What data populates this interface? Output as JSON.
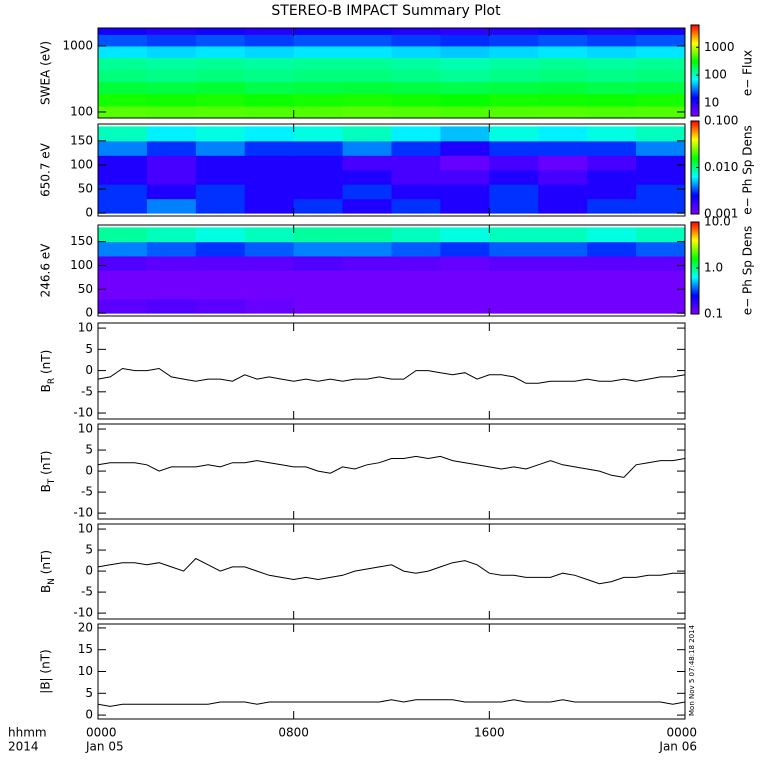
{
  "title": "STEREO-B IMPACT Summary Plot",
  "footer": {
    "format": "hhmm",
    "year": "2014"
  },
  "timestamp": "Mon Nov 5 07:48:18 2014",
  "chart_data": [
    {
      "type": "heatmap",
      "ylabel": "SWEA (eV)",
      "ylog": true,
      "ylim": [
        81,
        1870
      ],
      "yticks": [
        100,
        1000
      ],
      "xlim": [
        0,
        24
      ],
      "xticks": [
        0,
        8,
        16,
        24
      ],
      "xbins": [
        0,
        2,
        4,
        6,
        8,
        10,
        12,
        14,
        16,
        18,
        20,
        22,
        24
      ],
      "ybins": [
        81,
        123,
        190,
        290,
        440,
        670,
        1000,
        1500,
        1870
      ],
      "z": [
        [
          520,
          500,
          510,
          490,
          500,
          520,
          500,
          480,
          500,
          510,
          490,
          500
        ],
        [
          350,
          340,
          360,
          330,
          350,
          360,
          340,
          320,
          350,
          340,
          330,
          350
        ],
        [
          220,
          210,
          230,
          200,
          210,
          220,
          210,
          200,
          210,
          220,
          200,
          210
        ],
        [
          150,
          140,
          150,
          140,
          150,
          150,
          140,
          130,
          140,
          150,
          140,
          150
        ],
        [
          130,
          120,
          130,
          120,
          130,
          130,
          120,
          110,
          120,
          130,
          120,
          130
        ],
        [
          60,
          55,
          60,
          55,
          60,
          60,
          55,
          50,
          55,
          60,
          55,
          60
        ],
        [
          25,
          22,
          25,
          22,
          25,
          25,
          22,
          20,
          22,
          25,
          22,
          25
        ],
        [
          12,
          10,
          12,
          10,
          12,
          12,
          10,
          9,
          10,
          12,
          10,
          12
        ]
      ],
      "colormap": [
        "#7f00ff",
        "#0000ff",
        "#00ffff",
        "#00ff00",
        "#ffff00",
        "#ff0000"
      ],
      "colorbar": {
        "label": "e− Flux",
        "log": true,
        "lim": [
          3.4,
          6300
        ],
        "ticks": [
          10,
          100,
          1000
        ]
      }
    },
    {
      "type": "heatmap",
      "ylabel": "650.7 eV",
      "ylog": false,
      "ylim": [
        -6,
        185
      ],
      "yticks": [
        0,
        50,
        100,
        150
      ],
      "xlim": [
        0,
        24
      ],
      "xticks": [
        0,
        8,
        16,
        24
      ],
      "xbins": [
        0,
        2,
        4,
        6,
        8,
        10,
        12,
        14,
        16,
        18,
        20,
        22,
        24
      ],
      "ybins": [
        0,
        30,
        60,
        90,
        120,
        150,
        180
      ],
      "z": [
        [
          0.003,
          0.004,
          0.003,
          0.002,
          0.003,
          0.002,
          0.003,
          0.002,
          0.003,
          0.002,
          0.003,
          0.003
        ],
        [
          0.003,
          0.002,
          0.003,
          0.002,
          0.002,
          0.003,
          0.002,
          0.002,
          0.003,
          0.002,
          0.002,
          0.003
        ],
        [
          0.002,
          0.0015,
          0.002,
          0.002,
          0.002,
          0.002,
          0.0015,
          0.0015,
          0.002,
          0.0015,
          0.002,
          0.002
        ],
        [
          0.002,
          0.0015,
          0.002,
          0.002,
          0.002,
          0.0015,
          0.0015,
          0.0012,
          0.0015,
          0.0012,
          0.0015,
          0.002
        ],
        [
          0.004,
          0.003,
          0.004,
          0.003,
          0.003,
          0.004,
          0.003,
          0.002,
          0.003,
          0.003,
          0.003,
          0.004
        ],
        [
          0.008,
          0.006,
          0.007,
          0.006,
          0.007,
          0.008,
          0.006,
          0.005,
          0.007,
          0.006,
          0.007,
          0.008
        ]
      ],
      "colormap": [
        "#7f00ff",
        "#0000ff",
        "#00ffff",
        "#00ff00",
        "#ffff00",
        "#ff0000"
      ],
      "colorbar": {
        "label": "e− Ph Sp Dens",
        "log": true,
        "lim": [
          0.001,
          0.1
        ],
        "ticks": [
          0.001,
          {
            "value": 0.01,
            "label": "0.010"
          },
          {
            "value": 0.1,
            "label": "0.100"
          }
        ]
      }
    },
    {
      "type": "heatmap",
      "ylabel": "246.6 eV",
      "ylog": false,
      "ylim": [
        -6,
        185
      ],
      "yticks": [
        0,
        50,
        100,
        150
      ],
      "xlim": [
        0,
        24
      ],
      "xticks": [
        0,
        8,
        16,
        24
      ],
      "xbins": [
        0,
        2,
        4,
        6,
        8,
        10,
        12,
        14,
        16,
        18,
        20,
        22,
        24
      ],
      "ybins": [
        0,
        30,
        60,
        90,
        120,
        150,
        180
      ],
      "z": [
        [
          0.13,
          0.14,
          0.13,
          0.12,
          0.11,
          0.11,
          0.11,
          0.11,
          0.11,
          0.11,
          0.11,
          0.11
        ],
        [
          0.11,
          0.11,
          0.11,
          0.11,
          0.11,
          0.11,
          0.11,
          0.11,
          0.11,
          0.11,
          0.11,
          0.11
        ],
        [
          0.11,
          0.11,
          0.11,
          0.11,
          0.11,
          0.11,
          0.11,
          0.11,
          0.11,
          0.11,
          0.11,
          0.11
        ],
        [
          0.14,
          0.13,
          0.13,
          0.13,
          0.14,
          0.13,
          0.13,
          0.12,
          0.13,
          0.13,
          0.13,
          0.13
        ],
        [
          0.4,
          0.35,
          0.3,
          0.35,
          0.4,
          0.4,
          0.35,
          0.3,
          0.35,
          0.35,
          0.3,
          0.35
        ],
        [
          0.9,
          0.8,
          0.7,
          0.8,
          0.9,
          0.9,
          0.8,
          0.7,
          0.8,
          0.8,
          0.7,
          0.8
        ]
      ],
      "colormap": [
        "#7f00ff",
        "#0000ff",
        "#00ffff",
        "#00ff00",
        "#ffff00",
        "#ff0000"
      ],
      "colorbar": {
        "label": "e− Ph Sp Dens",
        "log": true,
        "lim": [
          0.1,
          10
        ],
        "ticks": [
          0.1,
          {
            "value": 1,
            "label": "1.0"
          },
          {
            "value": 10,
            "label": "10.0"
          }
        ]
      }
    },
    {
      "type": "line",
      "ylabel": {
        "base": "B",
        "sub": "R",
        "unit": " (nT)"
      },
      "color": "#000000",
      "ylim": [
        -11.4,
        11.2
      ],
      "yticks": [
        -10,
        -5,
        0,
        5,
        10
      ],
      "xlim": [
        0,
        24
      ],
      "xticks": [
        0,
        8,
        16,
        24
      ],
      "x": [
        0,
        0.5,
        1,
        1.5,
        2,
        2.5,
        3,
        3.5,
        4,
        4.5,
        5,
        5.5,
        6,
        6.5,
        7,
        7.5,
        8,
        8.5,
        9,
        9.5,
        10,
        10.5,
        11,
        11.5,
        12,
        12.5,
        13,
        13.5,
        14,
        14.5,
        15,
        15.5,
        16,
        16.5,
        17,
        17.5,
        18,
        18.5,
        19,
        19.5,
        20,
        20.5,
        21,
        21.5,
        22,
        22.5,
        23,
        23.5,
        24
      ],
      "values": [
        -2,
        -1.5,
        0.5,
        0,
        0,
        0.5,
        -1.5,
        -2,
        -2.5,
        -2,
        -2,
        -2.5,
        -1,
        -2,
        -1.5,
        -2,
        -2.5,
        -2,
        -2.5,
        -2,
        -2.5,
        -2,
        -2,
        -1.5,
        -2,
        -2,
        0,
        0,
        -0.5,
        -1,
        -0.5,
        -2,
        -1,
        -1,
        -1.5,
        -3,
        -3,
        -2.5,
        -2.5,
        -2.5,
        -2,
        -2.5,
        -2.5,
        -2,
        -2.5,
        -2,
        -1.5,
        -1.5,
        -1
      ]
    },
    {
      "type": "line",
      "ylabel": {
        "base": "B",
        "sub": "T",
        "unit": " (nT)"
      },
      "color": "#000000",
      "ylim": [
        -11.4,
        11.2
      ],
      "yticks": [
        -10,
        -5,
        0,
        5,
        10
      ],
      "xlim": [
        0,
        24
      ],
      "xticks": [
        0,
        8,
        16,
        24
      ],
      "x": [
        0,
        0.5,
        1,
        1.5,
        2,
        2.5,
        3,
        3.5,
        4,
        4.5,
        5,
        5.5,
        6,
        6.5,
        7,
        7.5,
        8,
        8.5,
        9,
        9.5,
        10,
        10.5,
        11,
        11.5,
        12,
        12.5,
        13,
        13.5,
        14,
        14.5,
        15,
        15.5,
        16,
        16.5,
        17,
        17.5,
        18,
        18.5,
        19,
        19.5,
        20,
        20.5,
        21,
        21.5,
        22,
        22.5,
        23,
        23.5,
        24
      ],
      "values": [
        1.5,
        2,
        2,
        2,
        1.5,
        0,
        1,
        1,
        1,
        1.5,
        1,
        2,
        2,
        2.5,
        2,
        1.5,
        1,
        1,
        0,
        -0.5,
        1,
        0.5,
        1.5,
        2,
        3,
        3,
        3.5,
        3,
        3.5,
        2.5,
        2,
        1.5,
        1,
        0.5,
        1,
        0.5,
        1.5,
        2.5,
        1.5,
        1,
        0.5,
        0,
        -1,
        -1.5,
        1.5,
        2,
        2.5,
        2.5,
        3
      ]
    },
    {
      "type": "line",
      "ylabel": {
        "base": "B",
        "sub": "N",
        "unit": " (nT)"
      },
      "color": "#000000",
      "ylim": [
        -11.4,
        11.2
      ],
      "yticks": [
        -10,
        -5,
        0,
        5,
        10
      ],
      "xlim": [
        0,
        24
      ],
      "xticks": [
        0,
        8,
        16,
        24
      ],
      "x": [
        0,
        0.5,
        1,
        1.5,
        2,
        2.5,
        3,
        3.5,
        4,
        4.5,
        5,
        5.5,
        6,
        6.5,
        7,
        7.5,
        8,
        8.5,
        9,
        9.5,
        10,
        10.5,
        11,
        11.5,
        12,
        12.5,
        13,
        13.5,
        14,
        14.5,
        15,
        15.5,
        16,
        16.5,
        17,
        17.5,
        18,
        18.5,
        19,
        19.5,
        20,
        20.5,
        21,
        21.5,
        22,
        22.5,
        23,
        23.5,
        24
      ],
      "values": [
        1,
        1.5,
        2,
        2,
        1.5,
        2,
        1,
        0,
        3,
        1.5,
        0,
        1,
        1,
        0,
        -1,
        -1.5,
        -2,
        -1.5,
        -2,
        -1.5,
        -1,
        0,
        0.5,
        1,
        1.5,
        0,
        -0.5,
        0,
        1,
        2,
        2.5,
        1.5,
        -0.5,
        -1,
        -1,
        -1.5,
        -1.5,
        -1.5,
        -0.5,
        -1,
        -2,
        -3,
        -2.5,
        -1.5,
        -1.5,
        -1,
        -1,
        -0.5,
        -0.5
      ]
    },
    {
      "type": "line",
      "ylabel": "|B| (nT)",
      "color": "#000000",
      "ylim": [
        -0.9,
        20.9
      ],
      "yticks": [
        0,
        5,
        10,
        15,
        20
      ],
      "xlim": [
        0,
        24
      ],
      "xticks": [
        {
          "value": 0,
          "label": "0000",
          "date": "Jan 05"
        },
        {
          "value": 8,
          "label": "0800"
        },
        {
          "value": 16,
          "label": "1600"
        },
        {
          "value": 24,
          "label": "0000",
          "date": "Jan 06"
        }
      ],
      "x": [
        0,
        0.5,
        1,
        1.5,
        2,
        2.5,
        3,
        3.5,
        4,
        4.5,
        5,
        5.5,
        6,
        6.5,
        7,
        7.5,
        8,
        8.5,
        9,
        9.5,
        10,
        10.5,
        11,
        11.5,
        12,
        12.5,
        13,
        13.5,
        14,
        14.5,
        15,
        15.5,
        16,
        16.5,
        17,
        17.5,
        18,
        18.5,
        19,
        19.5,
        20,
        20.5,
        21,
        21.5,
        22,
        22.5,
        23,
        23.5,
        24
      ],
      "values": [
        2.5,
        2,
        2.5,
        2.5,
        2.5,
        2.5,
        2.5,
        2.5,
        2.5,
        2.5,
        3,
        3,
        3,
        2.5,
        3,
        3,
        3,
        3,
        3,
        3,
        3,
        3,
        3,
        3,
        3.5,
        3,
        3.5,
        3.5,
        3.5,
        3.5,
        3,
        3,
        3,
        3,
        3.5,
        3,
        3,
        3,
        3.5,
        3,
        3,
        3,
        3,
        3,
        3,
        3,
        3,
        2.5,
        3
      ]
    }
  ]
}
